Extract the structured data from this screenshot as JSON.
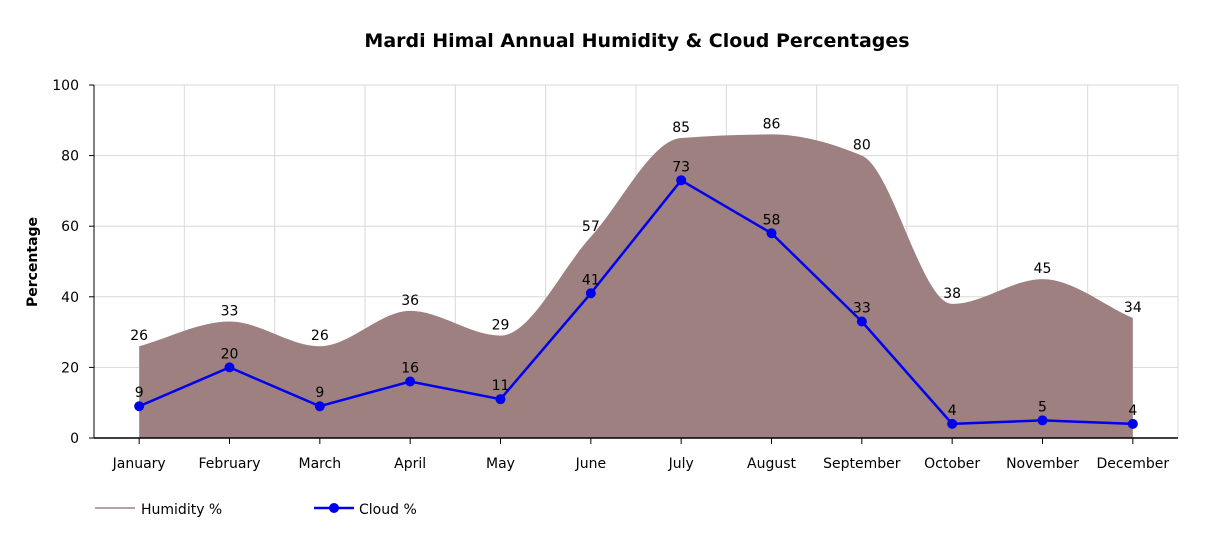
{
  "chart_data": {
    "type": "area",
    "title": "Mardi Himal Annual Humidity & Cloud Percentages",
    "xlabel": "",
    "ylabel": "Percentage",
    "ylim": [
      0,
      100
    ],
    "yticks": [
      "0",
      "20",
      "40",
      "60",
      "80",
      "100"
    ],
    "grid": true,
    "legend_position": "bottom-left",
    "categories": [
      "January",
      "February",
      "March",
      "April",
      "May",
      "June",
      "July",
      "August",
      "September",
      "October",
      "November",
      "December"
    ],
    "series": [
      {
        "name": "Humidity %",
        "type": "area",
        "color": "#9e8080",
        "values": [
          26,
          33,
          26,
          36,
          29,
          57,
          85,
          86,
          80,
          38,
          45,
          34
        ]
      },
      {
        "name": "Cloud %",
        "type": "line",
        "color": "#0000ee",
        "values": [
          9,
          20,
          9,
          16,
          11,
          41,
          73,
          58,
          33,
          4,
          5,
          4
        ]
      }
    ]
  }
}
